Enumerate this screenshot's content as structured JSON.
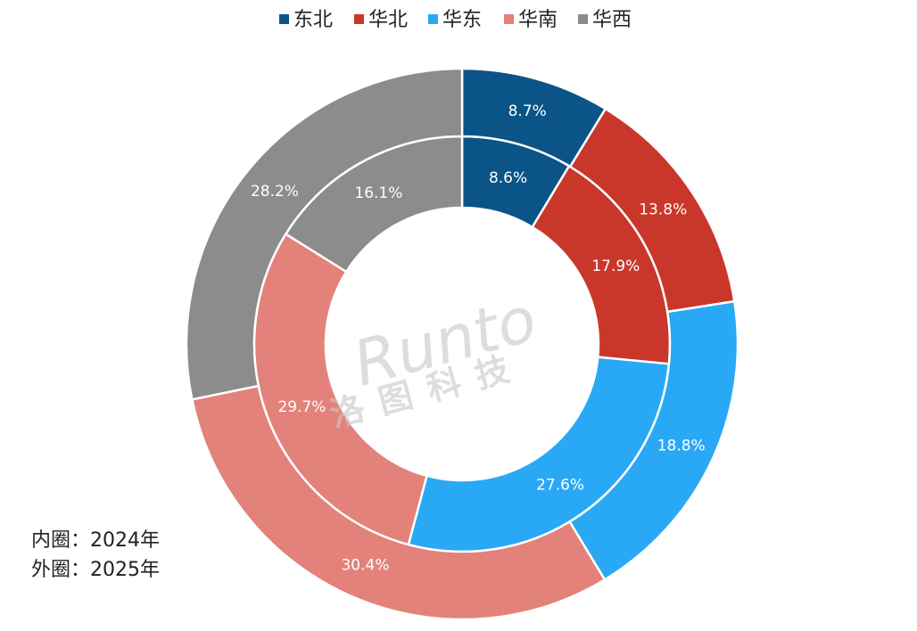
{
  "chart_data": {
    "type": "donut",
    "categories": [
      "东北",
      "华北",
      "华东",
      "华南",
      "华西"
    ],
    "colors": [
      "#0b5487",
      "#c9372a",
      "#29a9f5",
      "#e3827a",
      "#8c8c8c"
    ],
    "series": [
      {
        "name": "内圈：2024年",
        "values": [
          8.6,
          17.9,
          27.6,
          29.7,
          16.1
        ],
        "value_labels": [
          "8.6%",
          "17.9%",
          "27.6%",
          "29.7%",
          "16.1%"
        ]
      },
      {
        "name": "外圈：2025年",
        "values": [
          8.7,
          13.8,
          18.8,
          30.4,
          28.2
        ],
        "value_labels": [
          "8.7%",
          "13.8%",
          "18.8%",
          "30.4%",
          "28.2%"
        ]
      }
    ],
    "watermark": [
      "Runto",
      "洛图科技"
    ]
  }
}
